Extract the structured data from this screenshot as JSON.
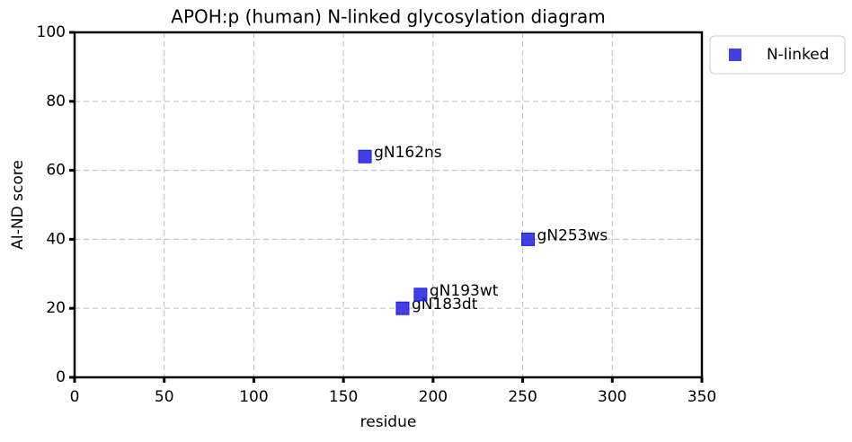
{
  "chart_data": {
    "type": "scatter",
    "title": "APOH:p (human) N-linked glycosylation diagram",
    "xlabel": "residue",
    "ylabel": "AI-ND score",
    "series": [
      {
        "name": "N-linked",
        "color": "#1f1fe0",
        "x": [
          162,
          183,
          193,
          253
        ],
        "values": [
          64,
          20,
          24,
          40
        ],
        "labels": [
          "gN162ns",
          "gN183dt",
          "gN193wt",
          "gN253ws"
        ]
      }
    ],
    "xlim": [
      0,
      350
    ],
    "ylim": [
      0,
      100
    ],
    "xticks": [
      0,
      50,
      100,
      150,
      200,
      250,
      300,
      350
    ],
    "yticks": [
      0,
      20,
      40,
      60,
      80,
      100
    ],
    "grid": true,
    "legend": "outside upper right"
  }
}
